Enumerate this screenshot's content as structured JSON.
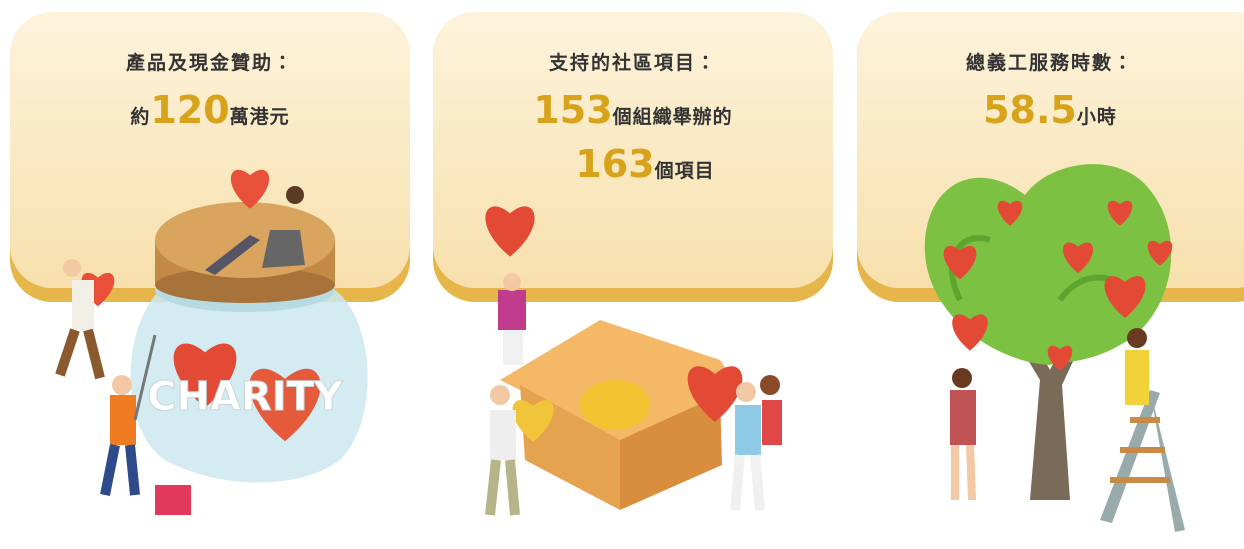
{
  "cards": [
    {
      "title": "產品及現金贊助：",
      "lines": [
        [
          {
            "text": "約"
          },
          {
            "number": "120"
          },
          {
            "text": "萬港元"
          }
        ]
      ]
    },
    {
      "title": "支持的社區項目：",
      "lines": [
        [
          {
            "number": "153"
          },
          {
            "text": "個組織舉辦的"
          }
        ],
        [
          {
            "number": "163"
          },
          {
            "text": "個項目"
          }
        ]
      ]
    },
    {
      "title": "總義工服務時數：",
      "lines": [
        [
          {
            "number": "58.5"
          },
          {
            "text": "小時"
          }
        ]
      ]
    }
  ],
  "illustration_text": "CHARITY"
}
